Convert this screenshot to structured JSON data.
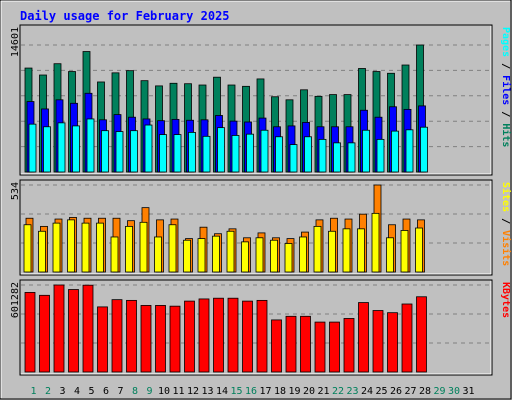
{
  "chart_data": {
    "type": "bar",
    "title": "Daily usage for February 2025",
    "days": [
      "1",
      "2",
      "3",
      "4",
      "5",
      "6",
      "7",
      "8",
      "9",
      "10",
      "11",
      "12",
      "13",
      "14",
      "15",
      "16",
      "17",
      "18",
      "19",
      "20",
      "21",
      "22",
      "23",
      "24",
      "25",
      "26",
      "27",
      "28",
      "29",
      "30",
      "31"
    ],
    "weekend_days": [
      "1",
      "2",
      "8",
      "9",
      "15",
      "16",
      "22",
      "23",
      "29",
      "30"
    ],
    "panels": [
      {
        "id": "hits-files-pages",
        "max_label": "14601",
        "ymax": 14601,
        "legend": [
          "Pages",
          "Files",
          "Hits"
        ],
        "series": [
          {
            "name": "Hits",
            "color": "#00805C",
            "values": [
              11950,
              11150,
              12450,
              11550,
              13850,
              10350,
              11400,
              11650,
              10500,
              9900,
              10200,
              10150,
              10000,
              10900,
              10000,
              9850,
              10700,
              8650,
              8300,
              9450,
              8700,
              8900,
              8900,
              11900,
              11550,
              11350,
              12300,
              14601
            ]
          },
          {
            "name": "Files",
            "color": "#0000FF",
            "values": [
              8100,
              7250,
              8300,
              7900,
              9050,
              6000,
              6600,
              6300,
              6100,
              5900,
              6050,
              5950,
              6000,
              6500,
              5850,
              5750,
              6200,
              5200,
              5300,
              5700,
              5200,
              5200,
              5200,
              7100,
              6300,
              7500,
              7200,
              7600
            ]
          },
          {
            "name": "Pages",
            "color": "#00FFFF",
            "values": [
              5500,
              5200,
              5650,
              5300,
              6100,
              4750,
              4650,
              4750,
              5400,
              4300,
              4300,
              4550,
              4100,
              5100,
              4200,
              4350,
              4800,
              4050,
              3150,
              4050,
              3750,
              3350,
              3350,
              4800,
              3750,
              4700,
              4850,
              5150
            ]
          }
        ]
      },
      {
        "id": "visits-sites",
        "max_label": "534",
        "ymax": 534,
        "legend": [
          "Sites",
          "Visits"
        ],
        "series": [
          {
            "name": "Visits",
            "color": "#FF8000",
            "values": [
              330,
              280,
              325,
              335,
              330,
              330,
              330,
              315,
              395,
              320,
              325,
              205,
              275,
              235,
              265,
              210,
              240,
              210,
              205,
              245,
              320,
              330,
              325,
              355,
              534,
              290,
              325,
              320
            ]
          },
          {
            "name": "Sites",
            "color": "#FFFF00",
            "values": [
              290,
              250,
              300,
              320,
              300,
              300,
              215,
              280,
              305,
              215,
              290,
              195,
              205,
              220,
              250,
              185,
              210,
              195,
              175,
              215,
              280,
              250,
              265,
              265,
              360,
              210,
              255,
              270
            ]
          }
        ]
      },
      {
        "id": "kbytes",
        "max_label": "601282",
        "ymax": 601282,
        "legend": [
          "KBytes"
        ],
        "series": [
          {
            "name": "KBytes",
            "color": "#FF0000",
            "values": [
              550000,
              530000,
              601282,
              570000,
              600000,
              450000,
              500000,
              495000,
              460000,
              460000,
              455000,
              490000,
              505000,
              510000,
              510000,
              490000,
              495000,
              360000,
              385000,
              385000,
              345000,
              345000,
              370000,
              480000,
              425000,
              410000,
              470000,
              520000
            ]
          }
        ]
      }
    ]
  }
}
